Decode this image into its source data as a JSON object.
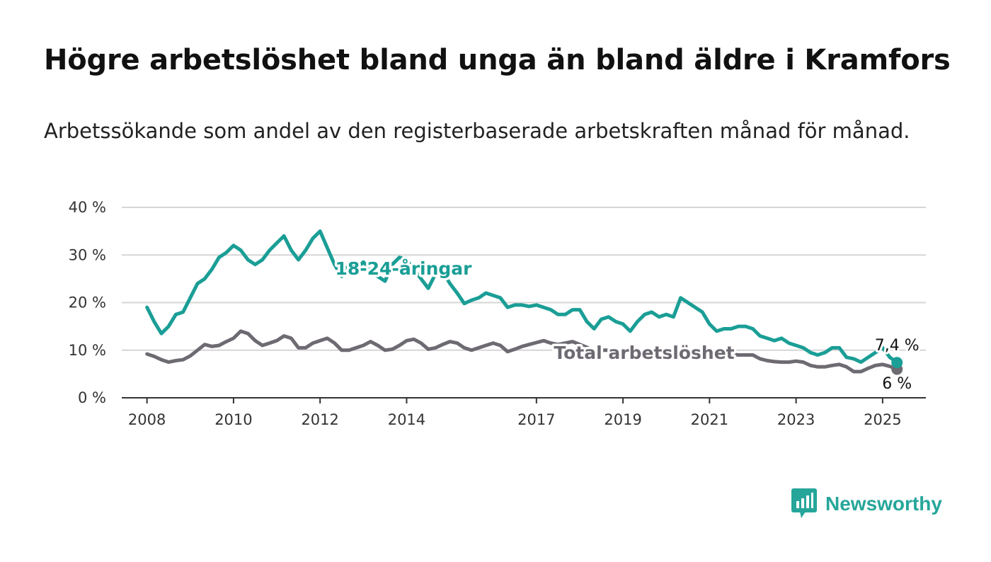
{
  "header": {
    "title": "Högre arbetslöshet bland unga än bland äldre i Kramfors",
    "subtitle": "Arbetssökande som andel av den registerbaserade arbetskraften månad för månad."
  },
  "brand": {
    "name": "Newsworthy",
    "icon": "bar-chart-speech-bubble-icon",
    "color": "#26a69a"
  },
  "chart_data": {
    "type": "line",
    "ylim": [
      0,
      40
    ],
    "yticks": [
      0,
      10,
      20,
      30,
      40
    ],
    "ytick_labels": [
      "0 %",
      "10 %",
      "20 %",
      "30 %",
      "40 %"
    ],
    "xlim": [
      "2007-06",
      "2026-01"
    ],
    "xticks": [
      "2008-01",
      "2010-01",
      "2012-01",
      "2014-01",
      "2017-01",
      "2019-01",
      "2021-01",
      "2023-01",
      "2025-01"
    ],
    "xtick_labels": [
      "2008",
      "2010",
      "2012",
      "2014",
      "2017",
      "2019",
      "2021",
      "2023",
      "2025"
    ],
    "grid": true,
    "series": [
      {
        "name": "18-24-åringar",
        "color": "#1a9e96",
        "end_label": "7,4 %",
        "points": [
          [
            "2008-01",
            19
          ],
          [
            "2008-03",
            16
          ],
          [
            "2008-05",
            13.5
          ],
          [
            "2008-07",
            15
          ],
          [
            "2008-09",
            17.5
          ],
          [
            "2008-11",
            18
          ],
          [
            "2009-01",
            21
          ],
          [
            "2009-03",
            24
          ],
          [
            "2009-05",
            25
          ],
          [
            "2009-07",
            27
          ],
          [
            "2009-09",
            29.5
          ],
          [
            "2009-11",
            30.5
          ],
          [
            "2010-01",
            32
          ],
          [
            "2010-03",
            31
          ],
          [
            "2010-05",
            29
          ],
          [
            "2010-07",
            28
          ],
          [
            "2010-09",
            29
          ],
          [
            "2010-11",
            31
          ],
          [
            "2011-01",
            32.5
          ],
          [
            "2011-03",
            34
          ],
          [
            "2011-05",
            31
          ],
          [
            "2011-07",
            29
          ],
          [
            "2011-09",
            31
          ],
          [
            "2011-11",
            33.5
          ],
          [
            "2012-01",
            35
          ],
          [
            "2012-03",
            31.5
          ],
          [
            "2012-05",
            28
          ],
          [
            "2012-07",
            25.5
          ],
          [
            "2012-09",
            28
          ],
          [
            "2012-11",
            27
          ],
          [
            "2013-01",
            28.5
          ],
          [
            "2013-03",
            27
          ],
          [
            "2013-05",
            25.5
          ],
          [
            "2013-07",
            24.5
          ],
          [
            "2013-09",
            28
          ],
          [
            "2013-11",
            29.5
          ],
          [
            "2014-01",
            29
          ],
          [
            "2014-03",
            27
          ],
          [
            "2014-05",
            25
          ],
          [
            "2014-07",
            23
          ],
          [
            "2014-09",
            26
          ],
          [
            "2014-11",
            26.5
          ],
          [
            "2015-01",
            24
          ],
          [
            "2015-03",
            22
          ],
          [
            "2015-05",
            19.8
          ],
          [
            "2015-07",
            20.5
          ],
          [
            "2015-09",
            21
          ],
          [
            "2015-11",
            22
          ],
          [
            "2016-01",
            21.5
          ],
          [
            "2016-03",
            21
          ],
          [
            "2016-05",
            19
          ],
          [
            "2016-07",
            19.5
          ],
          [
            "2016-09",
            19.5
          ],
          [
            "2016-11",
            19.2
          ],
          [
            "2017-01",
            19.5
          ],
          [
            "2017-03",
            19
          ],
          [
            "2017-05",
            18.5
          ],
          [
            "2017-07",
            17.5
          ],
          [
            "2017-09",
            17.5
          ],
          [
            "2017-11",
            18.5
          ],
          [
            "2018-01",
            18.5
          ],
          [
            "2018-03",
            16
          ],
          [
            "2018-05",
            14.5
          ],
          [
            "2018-07",
            16.5
          ],
          [
            "2018-09",
            17
          ],
          [
            "2018-11",
            16
          ],
          [
            "2019-01",
            15.5
          ],
          [
            "2019-03",
            14
          ],
          [
            "2019-05",
            16
          ],
          [
            "2019-07",
            17.5
          ],
          [
            "2019-09",
            18
          ],
          [
            "2019-11",
            17
          ],
          [
            "2020-01",
            17.5
          ],
          [
            "2020-03",
            17
          ],
          [
            "2020-05",
            21
          ],
          [
            "2020-07",
            20
          ],
          [
            "2020-09",
            19
          ],
          [
            "2020-11",
            18
          ],
          [
            "2021-01",
            15.5
          ],
          [
            "2021-03",
            14
          ],
          [
            "2021-05",
            14.5
          ],
          [
            "2021-07",
            14.5
          ],
          [
            "2021-09",
            15
          ],
          [
            "2021-11",
            15
          ],
          [
            "2022-01",
            14.5
          ],
          [
            "2022-03",
            13
          ],
          [
            "2022-05",
            12.5
          ],
          [
            "2022-07",
            12
          ],
          [
            "2022-09",
            12.5
          ],
          [
            "2022-11",
            11.5
          ],
          [
            "2023-01",
            11
          ],
          [
            "2023-03",
            10.5
          ],
          [
            "2023-05",
            9.5
          ],
          [
            "2023-07",
            9
          ],
          [
            "2023-09",
            9.5
          ],
          [
            "2023-11",
            10.5
          ],
          [
            "2024-01",
            10.5
          ],
          [
            "2024-03",
            8.5
          ],
          [
            "2024-05",
            8.2
          ],
          [
            "2024-07",
            7.5
          ],
          [
            "2024-09",
            8.5
          ],
          [
            "2024-11",
            9.5
          ],
          [
            "2025-01",
            10.5
          ],
          [
            "2025-03",
            8.5
          ],
          [
            "2025-05",
            7.4
          ]
        ]
      },
      {
        "name": "Total arbetslöshet",
        "color": "#6e6a72",
        "end_label": "6 %",
        "points": [
          [
            "2008-01",
            9.2
          ],
          [
            "2008-03",
            8.7
          ],
          [
            "2008-05",
            8
          ],
          [
            "2008-07",
            7.5
          ],
          [
            "2008-09",
            7.8
          ],
          [
            "2008-11",
            8
          ],
          [
            "2009-01",
            8.8
          ],
          [
            "2009-03",
            10
          ],
          [
            "2009-05",
            11.2
          ],
          [
            "2009-07",
            10.8
          ],
          [
            "2009-09",
            11
          ],
          [
            "2009-11",
            11.8
          ],
          [
            "2010-01",
            12.5
          ],
          [
            "2010-03",
            14
          ],
          [
            "2010-05",
            13.5
          ],
          [
            "2010-07",
            12
          ],
          [
            "2010-09",
            11
          ],
          [
            "2010-11",
            11.5
          ],
          [
            "2011-01",
            12
          ],
          [
            "2011-03",
            13
          ],
          [
            "2011-05",
            12.5
          ],
          [
            "2011-07",
            10.5
          ],
          [
            "2011-09",
            10.5
          ],
          [
            "2011-11",
            11.5
          ],
          [
            "2012-01",
            12
          ],
          [
            "2012-03",
            12.5
          ],
          [
            "2012-05",
            11.5
          ],
          [
            "2012-07",
            10
          ],
          [
            "2012-09",
            10
          ],
          [
            "2012-11",
            10.5
          ],
          [
            "2013-01",
            11
          ],
          [
            "2013-03",
            11.8
          ],
          [
            "2013-05",
            11
          ],
          [
            "2013-07",
            10
          ],
          [
            "2013-09",
            10.2
          ],
          [
            "2013-11",
            11
          ],
          [
            "2014-01",
            12
          ],
          [
            "2014-03",
            12.3
          ],
          [
            "2014-05",
            11.5
          ],
          [
            "2014-07",
            10.2
          ],
          [
            "2014-09",
            10.5
          ],
          [
            "2014-11",
            11.2
          ],
          [
            "2015-01",
            11.8
          ],
          [
            "2015-03",
            11.5
          ],
          [
            "2015-05",
            10.5
          ],
          [
            "2015-07",
            10
          ],
          [
            "2015-09",
            10.5
          ],
          [
            "2015-11",
            11
          ],
          [
            "2016-01",
            11.5
          ],
          [
            "2016-03",
            11
          ],
          [
            "2016-05",
            9.7
          ],
          [
            "2016-07",
            10.2
          ],
          [
            "2016-09",
            10.8
          ],
          [
            "2016-11",
            11.2
          ],
          [
            "2017-01",
            11.6
          ],
          [
            "2017-03",
            12
          ],
          [
            "2017-05",
            11.5
          ],
          [
            "2017-07",
            11.2
          ],
          [
            "2017-09",
            11.5
          ],
          [
            "2017-11",
            11.8
          ],
          [
            "2018-01",
            11.2
          ],
          [
            "2018-03",
            10.6
          ],
          [
            "2018-05",
            10
          ],
          [
            "2018-07",
            10
          ],
          [
            "2018-09",
            10
          ],
          [
            "2018-11",
            10
          ],
          [
            "2019-01",
            10
          ],
          [
            "2019-03",
            9.8
          ],
          [
            "2019-05",
            9.8
          ],
          [
            "2019-07",
            9.8
          ],
          [
            "2019-09",
            9.8
          ],
          [
            "2019-11",
            9.8
          ],
          [
            "2020-01",
            9.6
          ],
          [
            "2020-03",
            9.6
          ],
          [
            "2020-05",
            9.6
          ],
          [
            "2020-07",
            9.5
          ],
          [
            "2020-09",
            9.5
          ],
          [
            "2020-11",
            9.5
          ],
          [
            "2021-01",
            9.4
          ],
          [
            "2021-03",
            9.4
          ],
          [
            "2021-05",
            9.3
          ],
          [
            "2021-07",
            9.2
          ],
          [
            "2021-09",
            9
          ],
          [
            "2021-11",
            9
          ],
          [
            "2022-01",
            9
          ],
          [
            "2022-03",
            8.2
          ],
          [
            "2022-05",
            7.8
          ],
          [
            "2022-07",
            7.6
          ],
          [
            "2022-09",
            7.5
          ],
          [
            "2022-11",
            7.5
          ],
          [
            "2023-01",
            7.7
          ],
          [
            "2023-03",
            7.5
          ],
          [
            "2023-05",
            6.8
          ],
          [
            "2023-07",
            6.5
          ],
          [
            "2023-09",
            6.5
          ],
          [
            "2023-11",
            6.8
          ],
          [
            "2024-01",
            7
          ],
          [
            "2024-03",
            6.5
          ],
          [
            "2024-05",
            5.5
          ],
          [
            "2024-07",
            5.5
          ],
          [
            "2024-09",
            6.2
          ],
          [
            "2024-11",
            6.8
          ],
          [
            "2025-01",
            7
          ],
          [
            "2025-03",
            6.6
          ],
          [
            "2025-05",
            6
          ]
        ]
      }
    ]
  }
}
